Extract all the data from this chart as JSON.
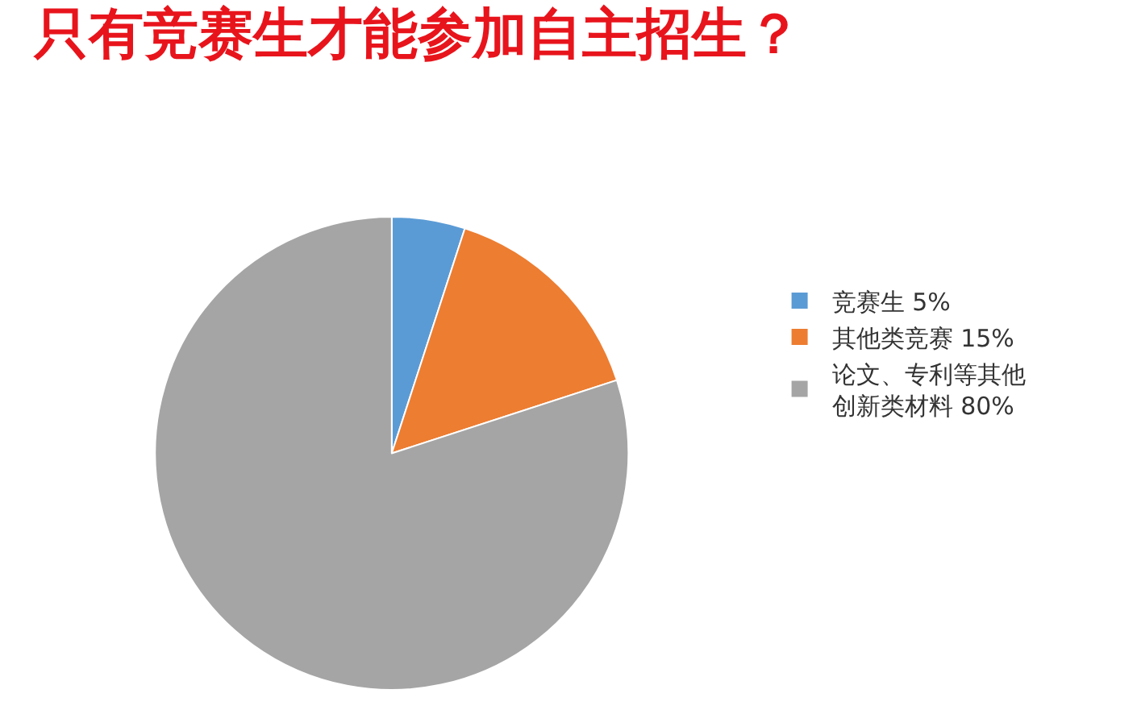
{
  "chart_data": {
    "type": "pie",
    "title": "只有竞赛生才能参加自主招生？",
    "categories": [
      "竞赛生 5%",
      "其他类竞赛 15%",
      "论文、专利等其他创新类材料 80%"
    ],
    "values": [
      5,
      15,
      80
    ],
    "colors": [
      "#5b9bd5",
      "#ed7d31",
      "#a5a5a5"
    ],
    "legend": "right"
  }
}
